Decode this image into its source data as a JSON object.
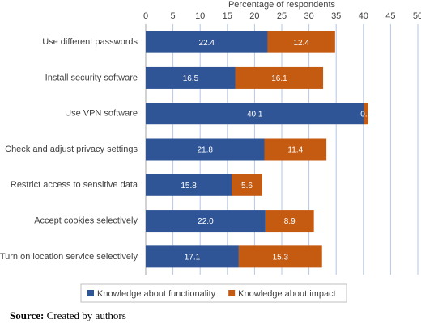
{
  "chart_data": {
    "type": "stacked-bar-horizontal",
    "x_label": "Percentage of respondents",
    "categories": [
      "Use different passwords",
      "Install security software",
      "Use VPN software",
      "Check and adjust privacy settings",
      "Restrict access to sensitive data",
      "Accept cookies selectively",
      "Turn on location service selectively"
    ],
    "series": [
      {
        "name": "Knowledge about functionality",
        "color": "#2f5597",
        "values": [
          22.4,
          16.5,
          40.1,
          21.8,
          15.8,
          22.0,
          17.1
        ],
        "value_labels": [
          "22.4",
          "16.5",
          "40.1",
          "21.8",
          "15.8",
          "22.0",
          "17.1"
        ]
      },
      {
        "name": "Knowledge about impact",
        "color": "#c55a11",
        "values": [
          12.4,
          16.1,
          0.8,
          11.4,
          5.6,
          8.9,
          15.3
        ],
        "value_labels": [
          "12.4",
          "16.1",
          "0.8",
          "11.4",
          "5.6",
          "8.9",
          "15.3"
        ]
      }
    ],
    "xlim": [
      0,
      50
    ],
    "xticks": [
      0,
      5,
      10,
      15,
      20,
      25,
      30,
      35,
      40,
      45,
      50
    ],
    "grid": true,
    "legend": "bottom",
    "source_label": "Source:",
    "source": "Created by authors"
  }
}
